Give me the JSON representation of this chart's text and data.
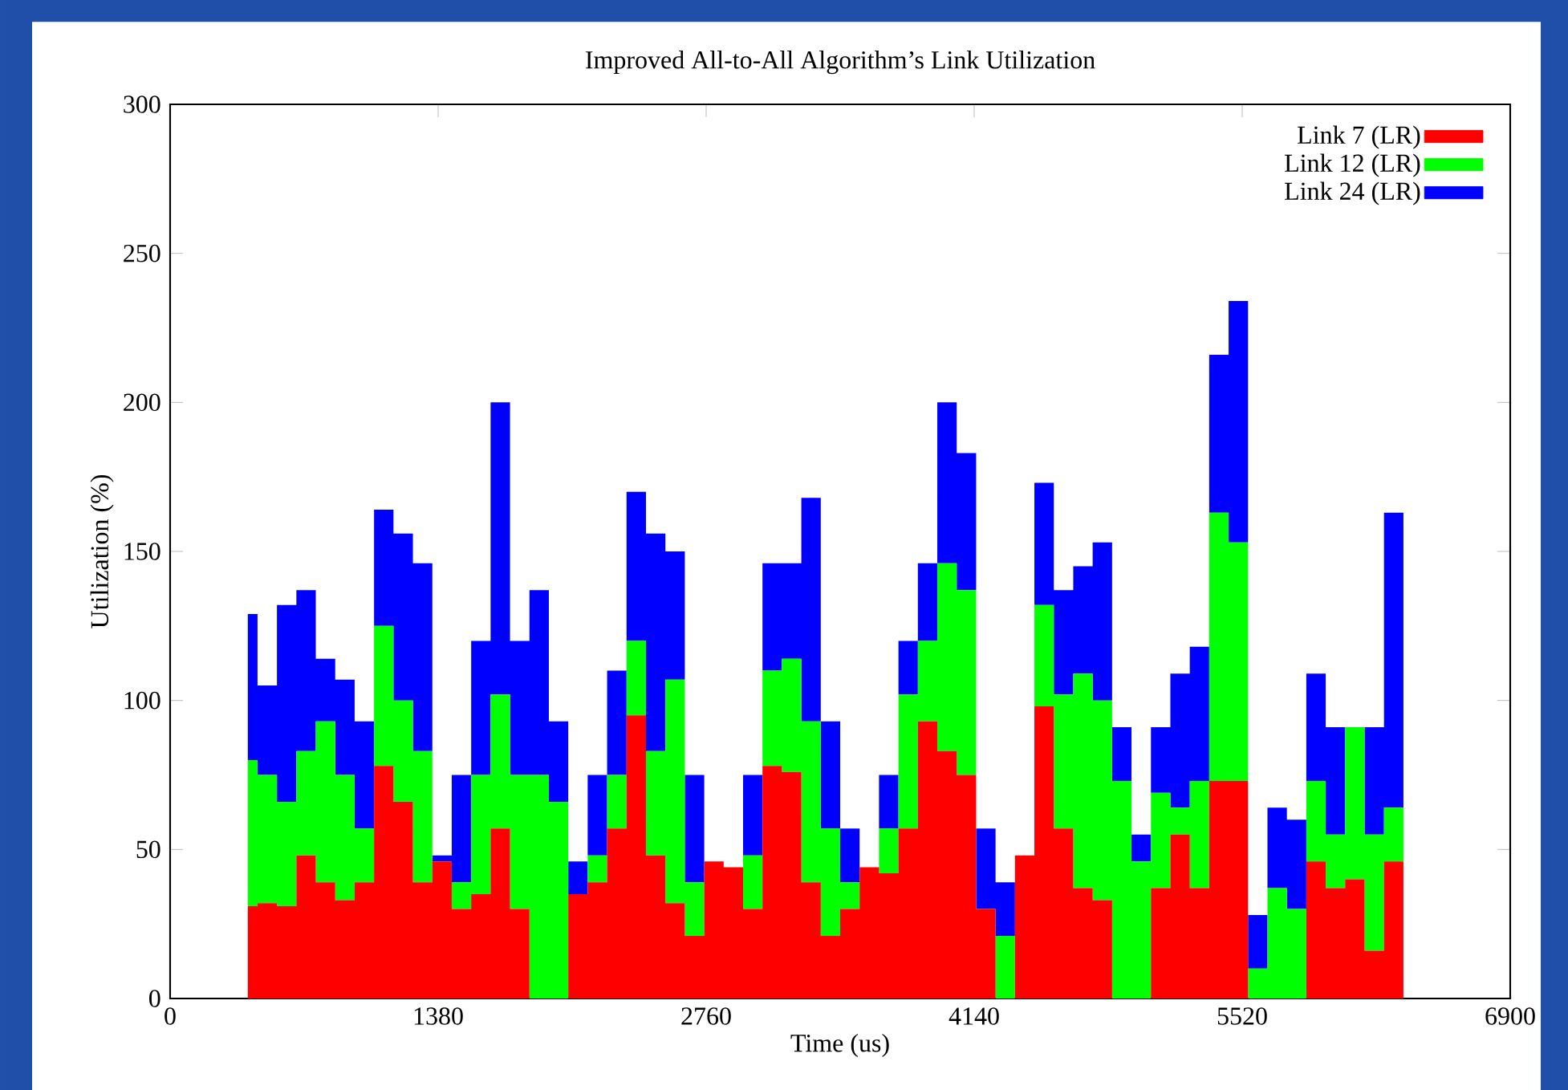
{
  "chart_data": {
    "type": "area",
    "title": "Improved All-to-All Algorithm’s Link Utilization",
    "xlabel": "Time (us)",
    "ylabel": "Utilization (%)",
    "stacked": true,
    "legend": "top right",
    "grid": false,
    "xlim": [
      0,
      6900
    ],
    "xticks": [
      0,
      1380,
      2760,
      4140,
      5520,
      6900
    ],
    "ylim": [
      0,
      300
    ],
    "yticks": [
      0,
      50,
      100,
      150,
      200,
      250,
      300
    ],
    "x": [
      400,
      500,
      600,
      700,
      800,
      900,
      1000,
      1100,
      1200,
      1300,
      1400,
      1500,
      1600,
      1700,
      1800,
      1900,
      2000,
      2100,
      2200,
      2300,
      2400,
      2500,
      2600,
      2700,
      2800,
      2900,
      3000,
      3100,
      3200,
      3300,
      3400,
      3500,
      3600,
      3700,
      3800,
      3900,
      4000,
      4100,
      4200,
      4300,
      4400,
      4500,
      4600,
      4700,
      4800,
      4900,
      5000,
      5100,
      5200,
      5300,
      5400,
      5500,
      5600,
      5700,
      5800,
      5900,
      6000,
      6100,
      6200,
      6300,
      6400
    ],
    "series": [
      {
        "name": "Link 7 (LR)",
        "color": "#ff0000",
        "values": [
          31,
          32,
          31,
          48,
          39,
          33,
          39,
          78,
          66,
          39,
          46,
          30,
          35,
          57,
          30,
          0,
          0,
          35,
          39,
          57,
          95,
          48,
          32,
          21,
          46,
          44,
          30,
          78,
          76,
          39,
          21,
          30,
          44,
          42,
          57,
          93,
          83,
          75,
          30,
          0,
          48,
          98,
          57,
          37,
          33,
          0,
          0,
          37,
          55,
          37,
          73,
          73,
          0,
          0,
          0,
          46,
          37,
          40,
          16,
          46,
          0
        ]
      },
      {
        "name": "Link 12 (LR)",
        "color": "#00ff00",
        "values": [
          49,
          43,
          35,
          35,
          54,
          42,
          18,
          47,
          34,
          44,
          0,
          9,
          40,
          45,
          45,
          75,
          66,
          0,
          9,
          18,
          25,
          35,
          75,
          18,
          0,
          0,
          18,
          32,
          38,
          54,
          36,
          9,
          0,
          15,
          45,
          27,
          63,
          62,
          0,
          21,
          0,
          34,
          45,
          72,
          67,
          73,
          46,
          32,
          9,
          36,
          90,
          80,
          10,
          37,
          30,
          27,
          18,
          51,
          39,
          18,
          0
        ]
      },
      {
        "name": "Link 24 (LR)",
        "color": "#0000ff",
        "values": [
          49,
          30,
          66,
          54,
          21,
          32,
          36,
          39,
          56,
          63,
          2,
          36,
          45,
          98,
          45,
          62,
          27,
          11,
          27,
          35,
          50,
          73,
          43,
          36,
          0,
          0,
          27,
          36,
          32,
          75,
          36,
          18,
          0,
          18,
          18,
          26,
          54,
          46,
          27,
          18,
          0,
          41,
          35,
          36,
          53,
          18,
          9,
          22,
          45,
          45,
          53,
          81,
          18,
          27,
          30,
          36,
          36,
          0,
          36,
          99,
          0
        ]
      }
    ]
  }
}
